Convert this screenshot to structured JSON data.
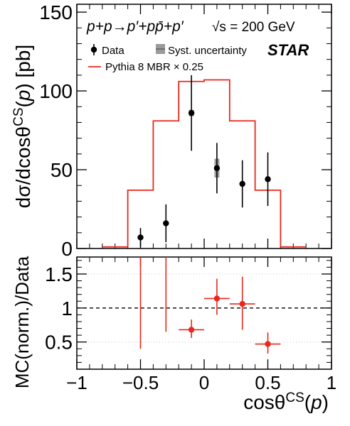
{
  "chart_data": [
    {
      "type": "histogram",
      "panel": "main",
      "ylabel": "dσ/dcosθ^CS(p) [pb]",
      "xlim": [
        -1,
        1
      ],
      "ylim": [
        0,
        155
      ],
      "y_ticks": [
        0,
        50,
        100,
        150
      ],
      "annotations": {
        "reaction": "p+p→p′+pp̄+p′",
        "energy": "√s = 200 GeV",
        "experiment": "STAR"
      },
      "legend": {
        "placement": "top-left",
        "entries": [
          "Data",
          "Syst. uncertainty",
          "Pythia 8 MBR × 0.25"
        ]
      },
      "series": [
        {
          "name": "Data",
          "kind": "points",
          "x": [
            -0.5,
            -0.3,
            -0.1,
            0.1,
            0.3,
            0.5
          ],
          "y": [
            7,
            16,
            86,
            51,
            41,
            44
          ],
          "y_err": [
            6,
            12,
            24,
            16,
            15,
            17
          ],
          "color": "#000000"
        },
        {
          "name": "Syst. uncertainty",
          "kind": "boxes",
          "x": [
            -0.5,
            -0.3,
            -0.1,
            0.1,
            0.3,
            0.5
          ],
          "y_low": [
            6.5,
            15,
            84,
            45,
            40,
            43
          ],
          "y_high": [
            7.5,
            17,
            88,
            57,
            42,
            45
          ],
          "color": "#9a9a9a"
        },
        {
          "name": "Pythia 8 MBR × 0.25",
          "kind": "step",
          "bin_edges": [
            -0.8,
            -0.6,
            -0.4,
            -0.2,
            0.0,
            0.2,
            0.4,
            0.6,
            0.8
          ],
          "values": [
            1,
            37,
            81,
            106,
            107,
            81,
            37,
            1
          ],
          "color": "#e8281e"
        }
      ]
    },
    {
      "type": "scatter",
      "panel": "ratio",
      "xlabel": "cosθ^CS(p)",
      "ylabel": "MC(norm.)/Data",
      "xlim": [
        -1,
        1
      ],
      "ylim": [
        0.1,
        1.75
      ],
      "x_ticks": [
        -1,
        -0.5,
        0,
        0.5,
        1
      ],
      "y_ticks": [
        0.5,
        1,
        1.5
      ],
      "reference_line": 1,
      "grid": "horizontal dotted at 0.5 and 1.5",
      "series": [
        {
          "name": "MC(norm.)/Data",
          "x": [
            -0.5,
            -0.3,
            -0.1,
            0.1,
            0.3,
            0.5
          ],
          "x_err": [
            0.1,
            0.1,
            0.1,
            0.1,
            0.1,
            0.1
          ],
          "y": [
            null,
            null,
            0.68,
            1.14,
            1.06,
            0.47
          ],
          "y_err_low": [
            null,
            null,
            0.12,
            0.24,
            0.38,
            0.14
          ],
          "y_err_high": [
            null,
            null,
            0.15,
            0.29,
            0.4,
            0.17
          ],
          "y_low_extent": [
            0.4,
            0.65,
            null,
            null,
            null,
            null
          ],
          "color": "#e8281e"
        }
      ]
    }
  ],
  "labels": {
    "x_ticks": [
      "−1",
      "−0.5",
      "0",
      "0.5",
      "1"
    ],
    "top_y_ticks": [
      "0",
      "50",
      "100",
      "150"
    ],
    "ratio_y_ticks": [
      "0.5",
      "1",
      "1.5"
    ]
  }
}
